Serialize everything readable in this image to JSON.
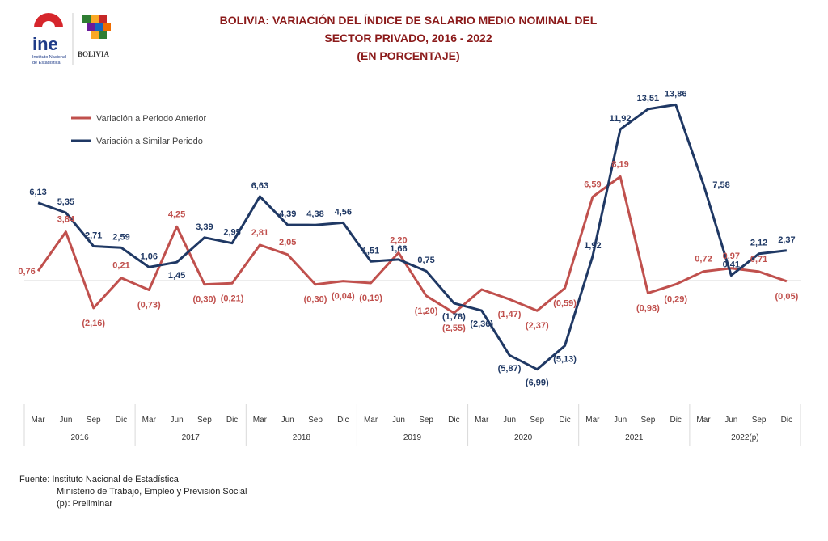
{
  "logos": {
    "ine_text": "ine",
    "ine_caption_1": "Instituto Nacional",
    "ine_caption_2": "de Estadística",
    "bolivia_text": "BOLIVIA"
  },
  "title": {
    "line1": "BOLIVIA: VARIACIÓN DEL ÍNDICE DE SALARIO MEDIO NOMINAL DEL",
    "line2": "SECTOR PRIVADO, 2016 - 2022",
    "line3": "(EN PORCENTAJE)"
  },
  "source": {
    "line1": "Fuente: Instituto Nacional de Estadística",
    "line2": "Ministerio de Trabajo, Empleo y Previsión Social",
    "line3": "(p): Preliminar"
  },
  "colors": {
    "series1": "#c0504d",
    "series2": "#1f3864",
    "title": "#8b1a1a"
  },
  "chart_data": {
    "type": "line",
    "title": "BOLIVIA: VARIACIÓN DEL ÍNDICE DE SALARIO MEDIO NOMINAL DEL SECTOR PRIVADO, 2016 - 2022 (EN PORCENTAJE)",
    "legend_position": "top-left",
    "grid": false,
    "ylim": [
      -8,
      15
    ],
    "quarters": [
      "Mar",
      "Jun",
      "Sep",
      "Dic"
    ],
    "years": [
      "2016",
      "2017",
      "2018",
      "2019",
      "2020",
      "2021",
      "2022(p)"
    ],
    "series": [
      {
        "name": "Variación a Periodo Anterior",
        "values": [
          0.76,
          3.84,
          -2.16,
          0.21,
          -0.73,
          4.25,
          -0.3,
          -0.21,
          2.81,
          2.05,
          -0.3,
          -0.04,
          -0.19,
          2.2,
          -1.2,
          -2.55,
          -0.7,
          -1.47,
          -2.37,
          -0.59,
          6.59,
          8.19,
          -0.98,
          -0.29,
          0.72,
          0.97,
          0.71,
          -0.05
        ],
        "labels": [
          "0,76",
          "3,84",
          "(2,16)",
          "0,21",
          "(0,73)",
          "4,25",
          "(0,30)",
          "(0,21)",
          "2,81",
          "2,05",
          "(0,30)",
          "(0,04)",
          "(0,19)",
          "2,20",
          "(1,20)",
          "(2,55)",
          "",
          "(1,47)",
          "(2,37)",
          "(0,59)",
          "6,59",
          "8,19",
          "(0,98)",
          "(0,29)",
          "0,72",
          "0,97",
          "0,71",
          "(0,05)"
        ]
      },
      {
        "name": "Variación a Similar Periodo",
        "values": [
          6.13,
          5.35,
          2.71,
          2.59,
          1.06,
          1.45,
          3.39,
          2.95,
          6.63,
          4.39,
          4.38,
          4.56,
          1.51,
          1.66,
          0.75,
          -1.78,
          -2.36,
          -5.87,
          -6.99,
          -5.13,
          1.92,
          11.92,
          13.51,
          13.86,
          7.58,
          0.41,
          2.12,
          2.37
        ],
        "labels": [
          "6,13",
          "5,35",
          "2,71",
          "2,59",
          "1,06",
          "1,45",
          "3,39",
          "2,95",
          "6,63",
          "4,39",
          "4,38",
          "4,56",
          "1,51",
          "1,66",
          "0,75",
          "(1,78)",
          "(2,36)",
          "(5,87)",
          "(6,99)",
          "(5,13)",
          "1,92",
          "11,92",
          "13,51",
          "13,86",
          "7,58",
          "0,41",
          "2,12",
          "2,37"
        ]
      }
    ]
  }
}
